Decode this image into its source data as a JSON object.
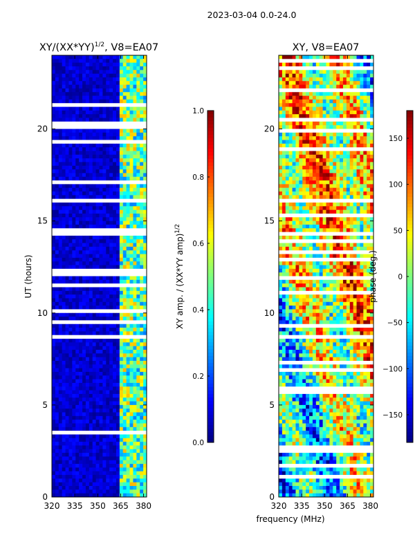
{
  "figure": {
    "suptitle": "2023-03-04 0.0-24.0",
    "xlabel_shared": "frequency (MHz)"
  },
  "colors": {
    "jet_stops": [
      "#00007f",
      "#0000ff",
      "#007fff",
      "#00ffff",
      "#7fff7f",
      "#ffff00",
      "#ff7f00",
      "#ff0000",
      "#7f0000"
    ],
    "flag_gap": "#ffffff"
  },
  "chart_data": [
    {
      "type": "heatmap",
      "name": "amp_ratio_panel",
      "title_main": "XY/(XX*YY)",
      "title_exp": "1/2",
      "title_suffix": ", V8=EA07",
      "xlabel": "",
      "ylabel": "UT (hours)",
      "xlim": [
        320,
        382
      ],
      "ylim": [
        0,
        24
      ],
      "xticks": [
        320,
        335,
        350,
        365,
        380
      ],
      "yticks": [
        0,
        5,
        10,
        15,
        20
      ],
      "colorbar": {
        "label_main": "XY amp. / (XX*YY amp)",
        "label_exp": "1/2",
        "range": [
          0.0,
          1.0
        ],
        "ticks": [
          "0.0",
          "0.2",
          "0.4",
          "0.6",
          "0.8",
          "1.0"
        ]
      },
      "description_values": {
        "background_level": 0.05,
        "band_364_to_381_level": 0.45
      }
    },
    {
      "type": "heatmap",
      "name": "phase_panel",
      "title_main": "XY, V8=EA07",
      "xlabel": "frequency (MHz)",
      "ylabel": "",
      "xlim": [
        320,
        382
      ],
      "ylim": [
        0,
        24
      ],
      "xticks": [
        320,
        335,
        350,
        365,
        380
      ],
      "yticks": [
        0,
        5,
        10,
        15,
        20
      ],
      "colorbar": {
        "label": "phase (deg.)",
        "range": [
          -180,
          180
        ],
        "ticks": [
          "150",
          "100",
          "50",
          "0",
          "−50",
          "−100",
          "−150"
        ]
      }
    }
  ]
}
